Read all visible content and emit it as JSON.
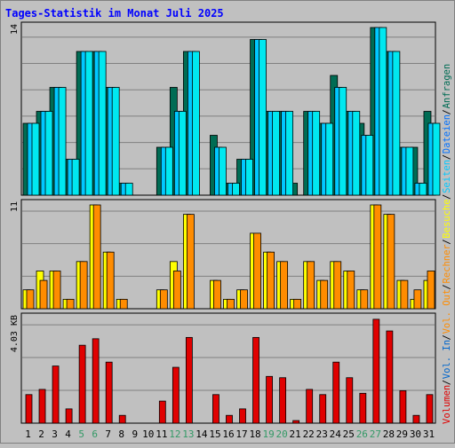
{
  "chart_data": {
    "type": "bar",
    "title": "Tages-Statistik im Monat Juli 2025",
    "categories": [
      "1",
      "2",
      "3",
      "4",
      "5",
      "6",
      "7",
      "8",
      "9",
      "10",
      "11",
      "12",
      "13",
      "14",
      "15",
      "16",
      "17",
      "18",
      "19",
      "20",
      "21",
      "22",
      "23",
      "24",
      "25",
      "26",
      "27",
      "28",
      "29",
      "30",
      "31"
    ],
    "weekend_days": [
      5,
      6,
      12,
      13,
      19,
      20,
      26,
      27
    ],
    "legend_right": [
      "Anfragen",
      "/",
      "Dateien",
      "/",
      "Seiten",
      "/",
      "Besuche",
      "/",
      "Rechner",
      "/",
      "Vol. Out",
      "/",
      "Vol. In",
      "/",
      "Volumen"
    ],
    "panels": [
      {
        "label": "14",
        "ylim": [
          0,
          14
        ],
        "series": [
          {
            "name": "Anfragen",
            "values": [
              6,
              7,
              9,
              3,
              12,
              12,
              9,
              1,
              0,
              0,
              4,
              9,
              12,
              0,
              5,
              1,
              3,
              13,
              7,
              7,
              1,
              7,
              6,
              10,
              7,
              6,
              14,
              12,
              4,
              4,
              7
            ]
          },
          {
            "name": "Dateien",
            "values": [
              6,
              7,
              9,
              3,
              12,
              12,
              9,
              1,
              0,
              0,
              4,
              7,
              12,
              0,
              4,
              1,
              3,
              13,
              7,
              7,
              0,
              7,
              6,
              9,
              7,
              5,
              14,
              12,
              4,
              1,
              6
            ]
          },
          {
            "name": "Seiten",
            "values": [
              6,
              7,
              9,
              3,
              12,
              12,
              9,
              1,
              0,
              0,
              4,
              7,
              12,
              0,
              4,
              1,
              3,
              13,
              7,
              7,
              0,
              7,
              6,
              9,
              7,
              5,
              14,
              12,
              4,
              1,
              6
            ]
          }
        ]
      },
      {
        "label": "11",
        "ylim": [
          0,
          11
        ],
        "series": [
          {
            "name": "Besuche",
            "values": [
              2,
              4,
              4,
              1,
              5,
              11,
              6,
              1,
              0,
              0,
              2,
              5,
              10,
              0,
              3,
              1,
              2,
              8,
              6,
              5,
              1,
              5,
              3,
              5,
              4,
              2,
              11,
              10,
              3,
              1,
              3
            ]
          },
          {
            "name": "Rechner",
            "values": [
              2,
              3,
              4,
              1,
              5,
              11,
              6,
              1,
              0,
              0,
              2,
              4,
              10,
              0,
              3,
              1,
              2,
              8,
              6,
              5,
              1,
              5,
              3,
              5,
              4,
              2,
              11,
              10,
              3,
              2,
              4
            ]
          }
        ]
      },
      {
        "label": "4.03 KB",
        "ylim": [
          0,
          4.03
        ],
        "series": [
          {
            "name": "Volumen",
            "values": [
              1.1,
              1.3,
              2.2,
              0.55,
              3.0,
              3.25,
              2.35,
              0.3,
              0,
              0,
              0.85,
              2.15,
              3.3,
              0,
              1.1,
              0.3,
              0.55,
              3.3,
              1.8,
              1.75,
              0.1,
              1.3,
              1.1,
              2.35,
              1.75,
              1.15,
              4.0,
              3.55,
              1.25,
              0.3,
              1.1
            ]
          }
        ]
      }
    ],
    "colors": {
      "anfragen": "#006c54",
      "dateien": "#00c8ff",
      "seiten": "#00e8f0",
      "besuche": "#ffff00",
      "rechner": "#ff8c00",
      "volumen": "#e00000",
      "title": "#0000ff",
      "weekend": "#339966"
    }
  }
}
